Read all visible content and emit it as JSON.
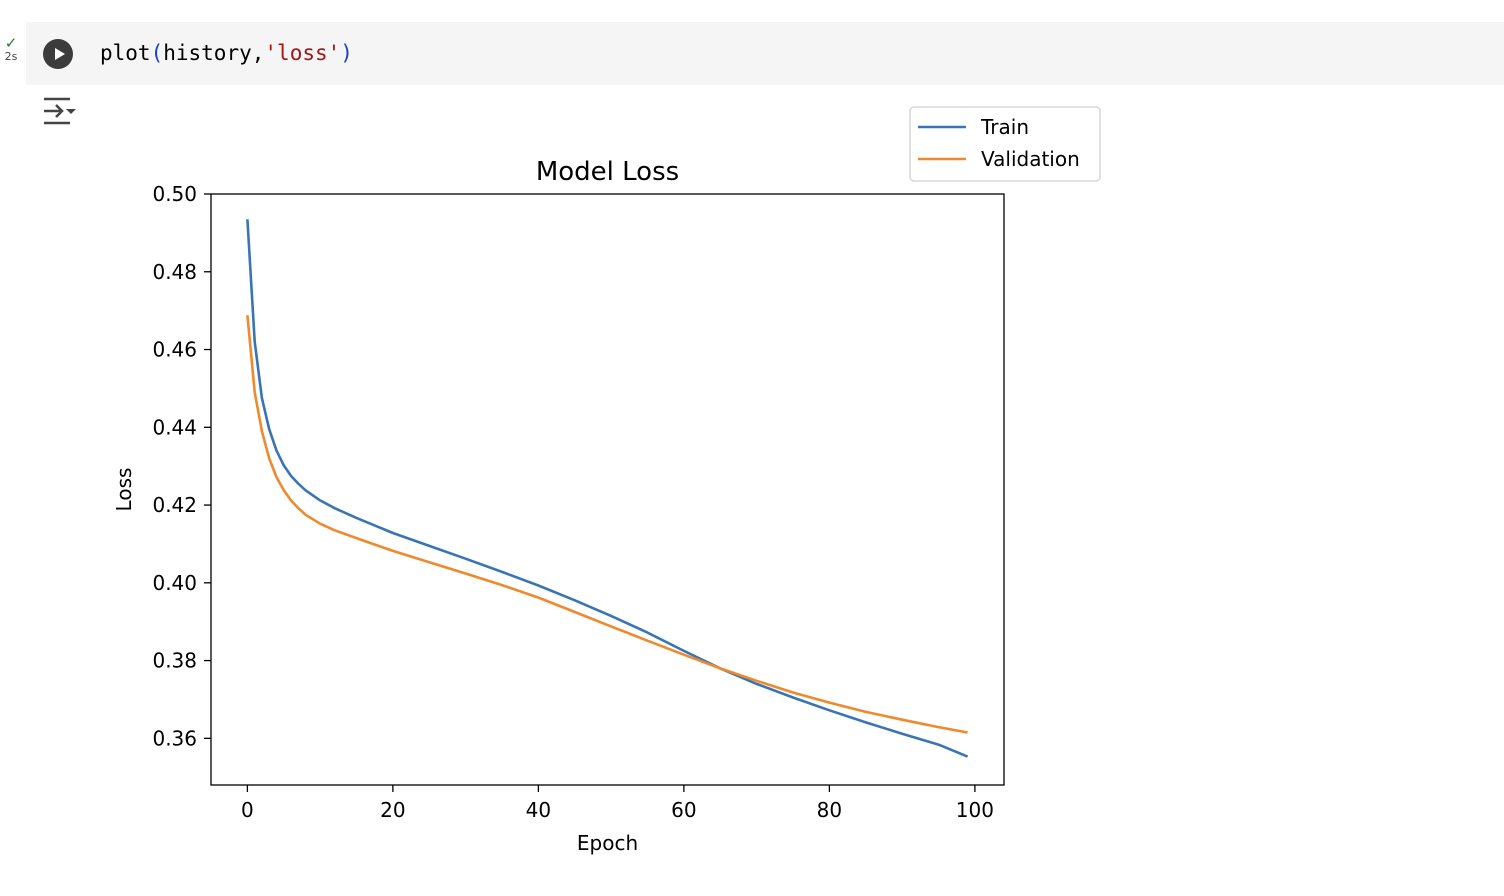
{
  "cell": {
    "status_icon": "check-icon",
    "exec_time": "2s",
    "code": {
      "fn": "plot",
      "open": "(",
      "arg1": "history",
      "comma": ",",
      "arg2": "'loss'",
      "close": ")"
    },
    "run_icon": "play-icon",
    "output_toggle_icon": "output-collapse-icon"
  },
  "colors": {
    "train": "#3a74b4",
    "validation": "#f0882e",
    "check": "#188038"
  },
  "chart_data": {
    "type": "line",
    "title": "Model Loss",
    "xlabel": "Epoch",
    "ylabel": "Loss",
    "xlim": [
      -5,
      104
    ],
    "ylim": [
      0.348,
      0.5
    ],
    "xticks": [
      0,
      20,
      40,
      60,
      80,
      100
    ],
    "xtick_labels": [
      "0",
      "20",
      "40",
      "60",
      "80",
      "100"
    ],
    "yticks": [
      0.36,
      0.38,
      0.4,
      0.42,
      0.44,
      0.46,
      0.48,
      0.5
    ],
    "ytick_labels": [
      "0.36",
      "0.38",
      "0.40",
      "0.42",
      "0.44",
      "0.46",
      "0.48",
      "0.50"
    ],
    "grid": false,
    "legend": "upper-right outside",
    "series": [
      {
        "name": "Train",
        "x": [
          0,
          1,
          2,
          3,
          4,
          5,
          6,
          7,
          8,
          10,
          12,
          15,
          20,
          25,
          30,
          35,
          40,
          45,
          50,
          55,
          60,
          65,
          70,
          75,
          80,
          85,
          90,
          95,
          99
        ],
        "y": [
          0.4935,
          0.462,
          0.4475,
          0.4395,
          0.434,
          0.4302,
          0.4275,
          0.4255,
          0.4238,
          0.4212,
          0.4192,
          0.4167,
          0.4128,
          0.4095,
          0.4062,
          0.4028,
          0.3993,
          0.3955,
          0.3915,
          0.3872,
          0.3825,
          0.378,
          0.374,
          0.3705,
          0.3672,
          0.3641,
          0.3612,
          0.3584,
          0.3553
        ]
      },
      {
        "name": "Validation",
        "x": [
          0,
          1,
          2,
          3,
          4,
          5,
          6,
          7,
          8,
          10,
          12,
          15,
          20,
          25,
          30,
          35,
          40,
          45,
          50,
          55,
          60,
          65,
          70,
          75,
          80,
          85,
          90,
          95,
          99
        ],
        "y": [
          0.4688,
          0.449,
          0.439,
          0.432,
          0.4272,
          0.4238,
          0.4212,
          0.4192,
          0.4175,
          0.4152,
          0.4135,
          0.4115,
          0.4082,
          0.4053,
          0.4024,
          0.3994,
          0.3962,
          0.3925,
          0.3888,
          0.3851,
          0.3815,
          0.378,
          0.3748,
          0.3718,
          0.3692,
          0.3668,
          0.3648,
          0.3629,
          0.3615
        ]
      }
    ]
  }
}
